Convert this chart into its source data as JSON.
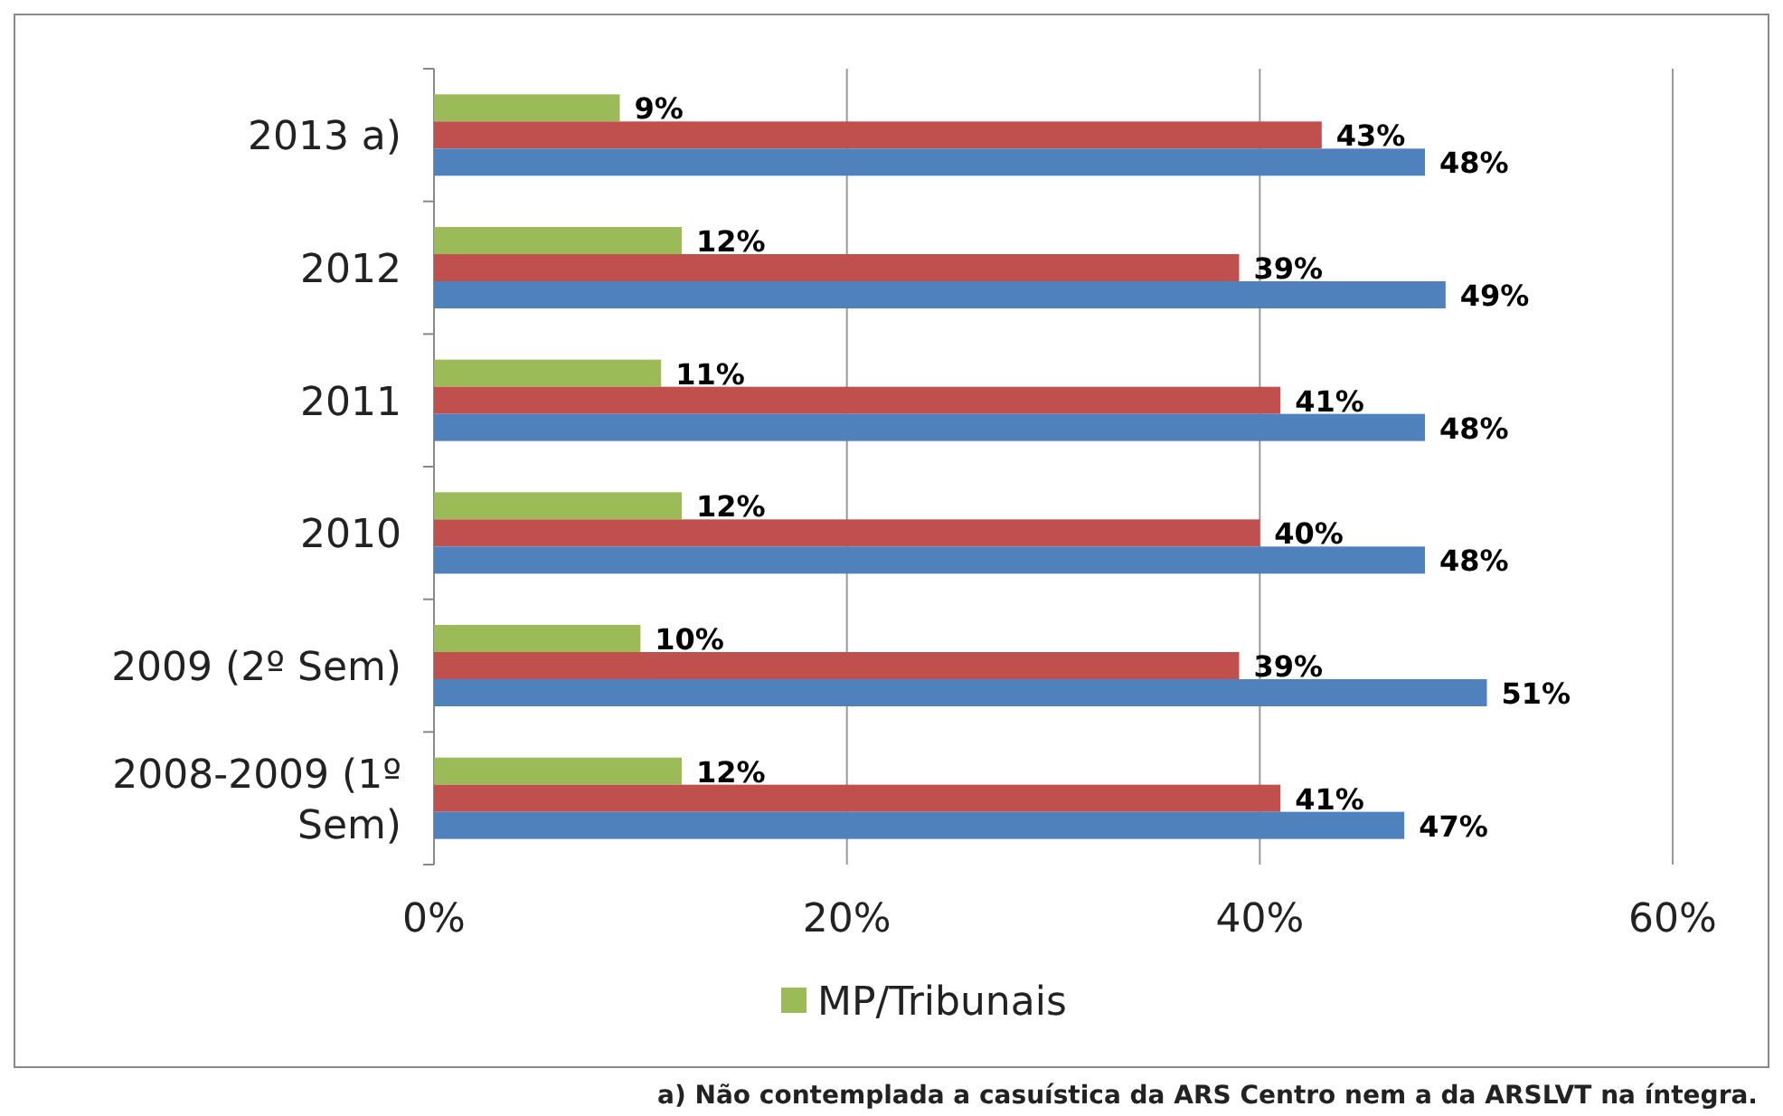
{
  "chart_data": {
    "type": "bar",
    "orientation": "horizontal",
    "categories": [
      "2013 a)",
      "2012",
      "2011",
      "2010",
      "2009 (2º Sem)",
      "2008-2009 (1º Sem)"
    ],
    "series": [
      {
        "name": "MP/Tribunais",
        "color": "#9bbb59",
        "values": [
          9,
          12,
          11,
          12,
          10,
          12
        ],
        "value_labels": [
          "9%",
          "12%",
          "11%",
          "12%",
          "10%",
          "12%"
        ]
      },
      {
        "color": "#c0504d",
        "values": [
          43,
          39,
          41,
          40,
          39,
          41
        ],
        "value_labels": [
          "43%",
          "39%",
          "41%",
          "40%",
          "39%",
          "41%"
        ]
      },
      {
        "color": "#4f81bd",
        "values": [
          48,
          49,
          48,
          48,
          51,
          47
        ],
        "value_labels": [
          "48%",
          "49%",
          "48%",
          "48%",
          "51%",
          "47%"
        ]
      }
    ],
    "xlim": [
      0,
      60
    ],
    "xticks": [
      {
        "value": 0,
        "label": "0%"
      },
      {
        "value": 20,
        "label": "20%"
      },
      {
        "value": 40,
        "label": "40%"
      },
      {
        "value": 60,
        "label": "60%"
      }
    ],
    "grid": "x",
    "legend": "bottom",
    "annotations": [
      "a) Não contemplada a casuística da ARS Centro nem a da ARSLVT na íntegra."
    ]
  }
}
